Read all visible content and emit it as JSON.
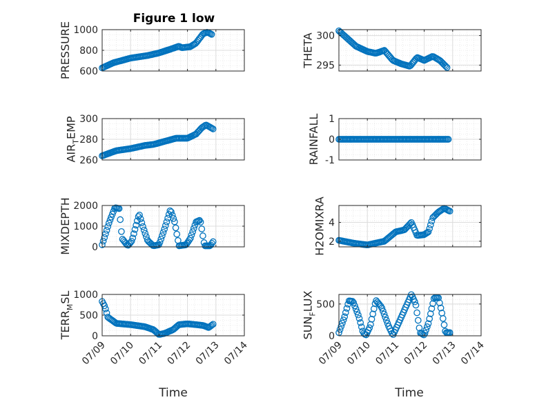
{
  "figure": {
    "title": "Figure 1 low",
    "xlabel": "Time"
  },
  "colors": {
    "series": "#0072BD",
    "axis": "#262626",
    "grid": "#dcdcdc"
  },
  "x_ticks": [
    "07/09",
    "07/10",
    "07/11",
    "07/12",
    "07/13",
    "07/14"
  ],
  "chart_data": [
    {
      "type": "scatter",
      "ylabel": "PRESSURE",
      "ylim": [
        600,
        1000
      ],
      "yticks": [
        600,
        800,
        1000
      ],
      "grid": true,
      "keypoints": [
        [
          0,
          630
        ],
        [
          0.4,
          680
        ],
        [
          1,
          725
        ],
        [
          1.6,
          750
        ],
        [
          2,
          775
        ],
        [
          2.5,
          820
        ],
        [
          2.7,
          840
        ],
        [
          2.8,
          825
        ],
        [
          3.1,
          835
        ],
        [
          3.3,
          870
        ],
        [
          3.55,
          960
        ],
        [
          3.7,
          975
        ],
        [
          3.85,
          955
        ]
      ]
    },
    {
      "type": "scatter",
      "ylabel": "THETA",
      "ylim": [
        294,
        301
      ],
      "yticks": [
        295,
        300
      ],
      "grid": true,
      "keypoints": [
        [
          0,
          300.8
        ],
        [
          0.3,
          299.5
        ],
        [
          0.6,
          298.2
        ],
        [
          1,
          297.3
        ],
        [
          1.3,
          297
        ],
        [
          1.6,
          297.5
        ],
        [
          1.9,
          295.8
        ],
        [
          2.2,
          295.2
        ],
        [
          2.5,
          294.8
        ],
        [
          2.75,
          296.3
        ],
        [
          3,
          295.8
        ],
        [
          3.3,
          296.5
        ],
        [
          3.55,
          295.8
        ],
        [
          3.8,
          294.6
        ]
      ]
    },
    {
      "type": "scatter",
      "ylabel": "AIR_TEMP",
      "ylim": [
        260,
        300
      ],
      "yticks": [
        260,
        280,
        300
      ],
      "grid": true,
      "keypoints": [
        [
          0,
          264
        ],
        [
          0.5,
          269
        ],
        [
          1,
          271
        ],
        [
          1.5,
          274
        ],
        [
          1.8,
          275
        ],
        [
          2.2,
          278
        ],
        [
          2.6,
          281
        ],
        [
          3,
          281
        ],
        [
          3.3,
          285
        ],
        [
          3.5,
          291
        ],
        [
          3.65,
          294
        ],
        [
          3.9,
          290
        ]
      ]
    },
    {
      "type": "scatter",
      "ylabel": "RAINFALL",
      "ylim": [
        -1,
        1
      ],
      "yticks": [
        -1,
        0,
        1
      ],
      "grid": true,
      "keypoints": [
        [
          0,
          0
        ],
        [
          3.85,
          0
        ]
      ]
    },
    {
      "type": "scatter",
      "ylabel": "MIXDEPTH",
      "ylim": [
        0,
        2000
      ],
      "yticks": [
        0,
        1000,
        2000
      ],
      "grid": true,
      "keypoints": [
        [
          0,
          100
        ],
        [
          0.25,
          1200
        ],
        [
          0.45,
          1900
        ],
        [
          0.6,
          1850
        ],
        [
          0.7,
          400
        ],
        [
          0.9,
          50
        ],
        [
          1.05,
          300
        ],
        [
          1.3,
          1600
        ],
        [
          1.45,
          900
        ],
        [
          1.6,
          300
        ],
        [
          1.8,
          50
        ],
        [
          2,
          100
        ],
        [
          2.2,
          900
        ],
        [
          2.4,
          1800
        ],
        [
          2.55,
          1200
        ],
        [
          2.7,
          50
        ],
        [
          2.95,
          100
        ],
        [
          3.1,
          400
        ],
        [
          3.3,
          1200
        ],
        [
          3.45,
          1300
        ],
        [
          3.6,
          50
        ],
        [
          3.8,
          50
        ],
        [
          3.9,
          250
        ]
      ]
    },
    {
      "type": "scatter",
      "ylabel": "H2OMIXRA",
      "ylim": [
        1.4,
        5.8
      ],
      "yticks": [
        2,
        4
      ],
      "grid": true,
      "keypoints": [
        [
          0,
          2.1
        ],
        [
          0.5,
          1.8
        ],
        [
          1,
          1.6
        ],
        [
          1.3,
          1.8
        ],
        [
          1.6,
          2
        ],
        [
          2,
          3
        ],
        [
          2.3,
          3.2
        ],
        [
          2.55,
          4
        ],
        [
          2.75,
          2.6
        ],
        [
          3,
          2.7
        ],
        [
          3.15,
          3
        ],
        [
          3.3,
          4.5
        ],
        [
          3.5,
          5.1
        ],
        [
          3.7,
          5.5
        ],
        [
          3.9,
          5.2
        ]
      ]
    },
    {
      "type": "scatter",
      "ylabel": "TERR_MSL",
      "ylim": [
        0,
        1000
      ],
      "yticks": [
        0,
        500,
        1000
      ],
      "grid": true,
      "keypoints": [
        [
          0,
          830
        ],
        [
          0.1,
          700
        ],
        [
          0.2,
          450
        ],
        [
          0.5,
          300
        ],
        [
          1,
          270
        ],
        [
          1.5,
          220
        ],
        [
          1.8,
          150
        ],
        [
          2,
          30
        ],
        [
          2.2,
          60
        ],
        [
          2.5,
          150
        ],
        [
          2.7,
          270
        ],
        [
          3,
          290
        ],
        [
          3.3,
          270
        ],
        [
          3.55,
          250
        ],
        [
          3.75,
          200
        ],
        [
          3.9,
          280
        ]
      ]
    },
    {
      "type": "scatter",
      "ylabel": "SUN_FLUX",
      "ylim": [
        0,
        650
      ],
      "yticks": [
        0,
        500
      ],
      "grid": true,
      "keypoints": [
        [
          0,
          50
        ],
        [
          0.2,
          300
        ],
        [
          0.35,
          550
        ],
        [
          0.5,
          540
        ],
        [
          0.7,
          300
        ],
        [
          0.85,
          50
        ],
        [
          0.95,
          10
        ],
        [
          1.1,
          150
        ],
        [
          1.3,
          560
        ],
        [
          1.5,
          450
        ],
        [
          1.75,
          150
        ],
        [
          1.9,
          10
        ],
        [
          2.1,
          200
        ],
        [
          2.35,
          450
        ],
        [
          2.55,
          650
        ],
        [
          2.7,
          500
        ],
        [
          2.85,
          50
        ],
        [
          3,
          10
        ],
        [
          3.15,
          200
        ],
        [
          3.35,
          600
        ],
        [
          3.5,
          600
        ],
        [
          3.65,
          300
        ],
        [
          3.75,
          50
        ],
        [
          3.9,
          50
        ]
      ]
    }
  ]
}
